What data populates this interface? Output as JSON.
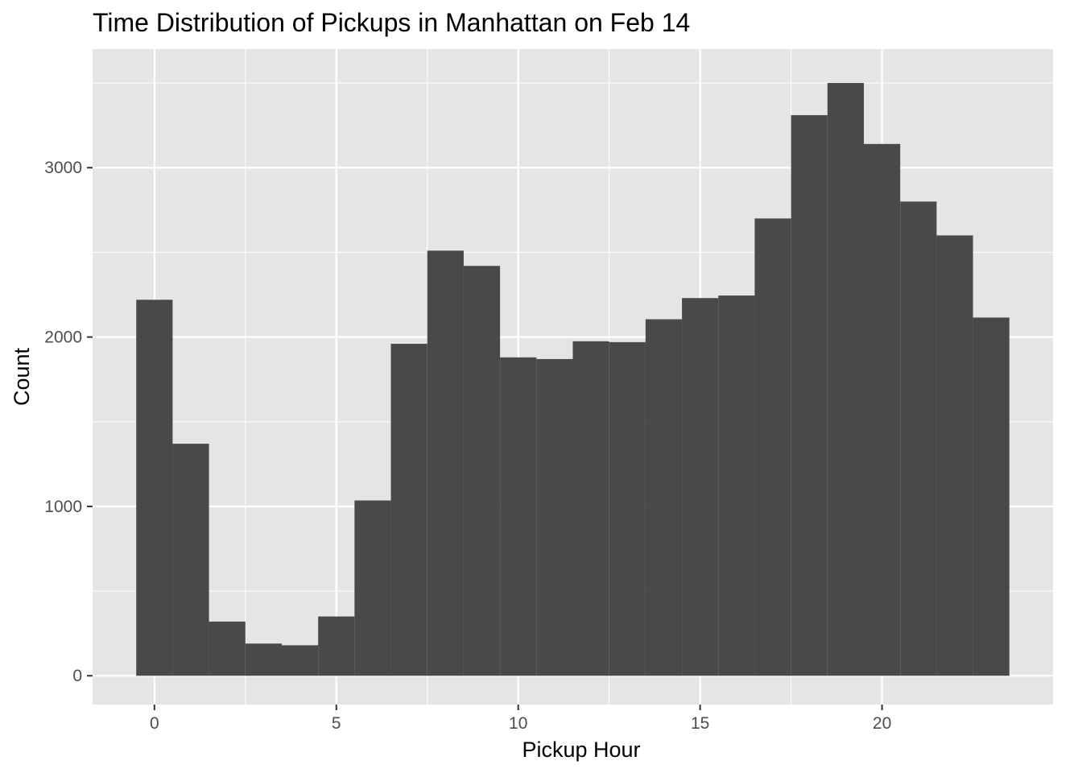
{
  "chart_data": {
    "type": "bar",
    "title": "Time Distribution of Pickups in Manhattan on Feb 14",
    "xlabel": "Pickup Hour",
    "ylabel": "Count",
    "x": [
      0,
      1,
      2,
      3,
      4,
      5,
      6,
      7,
      8,
      9,
      10,
      11,
      12,
      13,
      14,
      15,
      16,
      17,
      18,
      19,
      20,
      21,
      22,
      23
    ],
    "values": [
      2220,
      1370,
      320,
      190,
      180,
      350,
      1035,
      1960,
      2510,
      2420,
      1880,
      1870,
      1975,
      1970,
      2105,
      2230,
      2245,
      2700,
      3310,
      3500,
      3140,
      2800,
      2600,
      2115
    ],
    "xlim": [
      -1.7,
      24.7
    ],
    "ylim": [
      -170,
      3700
    ],
    "x_ticks": [
      0,
      5,
      10,
      15,
      20
    ],
    "x_tick_labels": [
      "0",
      "5",
      "10",
      "15",
      "20"
    ],
    "y_ticks": [
      0,
      1000,
      2000,
      3000
    ],
    "y_tick_labels": [
      "0",
      "1000",
      "2000",
      "3000"
    ],
    "grid": true,
    "legend": "none",
    "colors": {
      "panel_background": "#e5e5e5",
      "grid_line": "#ffffff",
      "bar_fill": "#494949",
      "tick_mark": "#333333",
      "tick_label": "#4d4d4d",
      "text": "#000000"
    }
  }
}
